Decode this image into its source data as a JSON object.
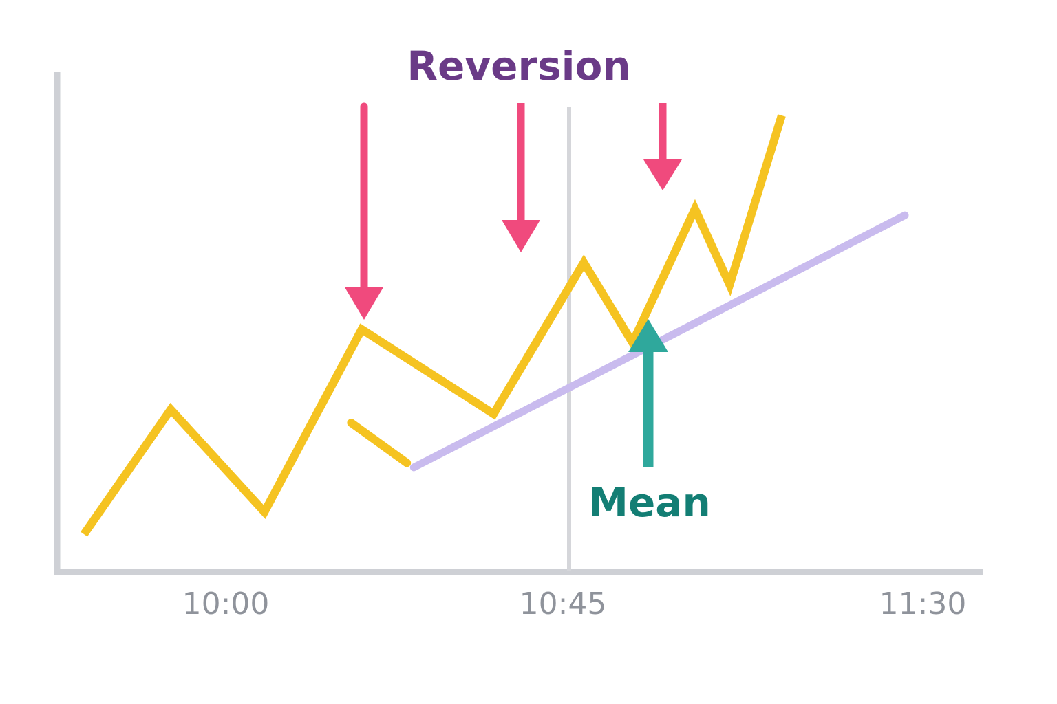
{
  "chart_data": {
    "type": "line",
    "title": "",
    "xlabel": "",
    "ylabel": "",
    "x_ticks": [
      "10:00",
      "10:45",
      "11:30"
    ],
    "xlim": [
      9.45,
      11.55
    ],
    "ylim": [
      0,
      100
    ],
    "grid": false,
    "reference_time": "10:45",
    "series": [
      {
        "name": "",
        "x": [
          9.5,
          9.75,
          10.02,
          10.3,
          10.68,
          10.94,
          11.08,
          11.26,
          11.36,
          11.51
        ],
        "y": [
          4,
          32,
          9,
          50,
          31,
          65,
          47,
          77,
          60,
          98
        ]
      },
      {
        "name": "",
        "x": [
          10.27,
          10.43
        ],
        "y": [
          29,
          20
        ]
      }
    ],
    "trend_line": {
      "x": [
        10.45,
        12.05
      ],
      "y": [
        19,
        83
      ]
    },
    "annotations": [
      {
        "label": "Reversion",
        "color": "#6a3a87",
        "arrow_color": "#f04a7d",
        "arrows_down_at": [
          10.64,
          10.96,
          11.27
        ]
      },
      {
        "label": "Mean",
        "color": "#137e74",
        "arrow_color": "#2fa89c",
        "arrow_up_at": 11.24
      }
    ],
    "colors": {
      "price_line": "#f5c321",
      "trend_line": "#c9bbee",
      "axis": "#ced0d5",
      "ref_line": "#d5d6da"
    }
  }
}
